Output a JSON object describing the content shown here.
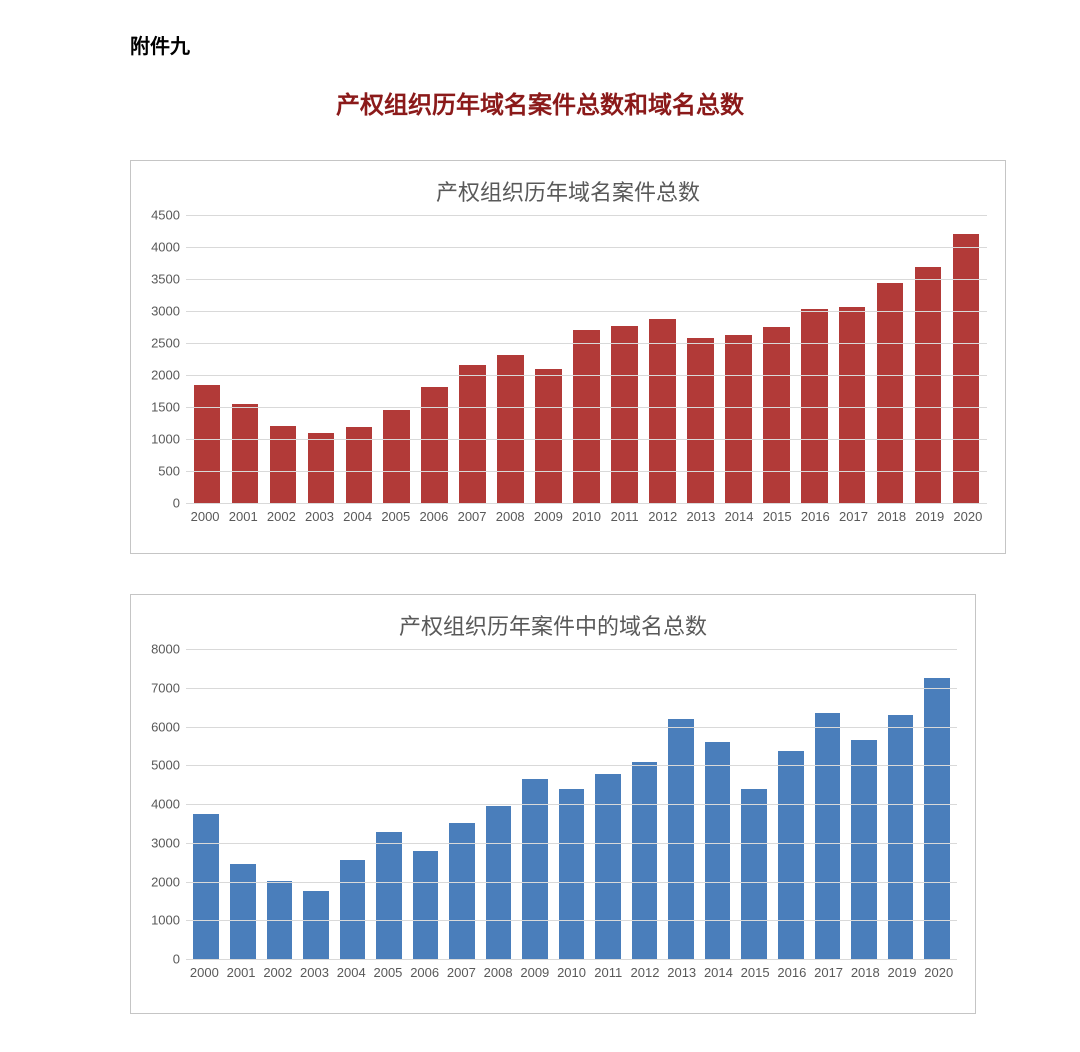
{
  "appendix_label": "附件九",
  "main_title": "产权组织历年域名案件总数和域名总数",
  "main_title_color": "#8b1a1a",
  "chart1": {
    "type": "bar",
    "title": "产权组织历年域名案件总数",
    "title_color": "#595959",
    "title_fontsize": 22,
    "categories": [
      "2000",
      "2001",
      "2002",
      "2003",
      "2004",
      "2005",
      "2006",
      "2007",
      "2008",
      "2009",
      "2010",
      "2011",
      "2012",
      "2013",
      "2014",
      "2015",
      "2016",
      "2017",
      "2018",
      "2019",
      "2020"
    ],
    "values": [
      1850,
      1550,
      1200,
      1100,
      1180,
      1450,
      1820,
      2150,
      2320,
      2100,
      2700,
      2760,
      2880,
      2580,
      2630,
      2750,
      3030,
      3070,
      3440,
      3690,
      4200
    ],
    "bar_color": "#b23a38",
    "ylim": [
      0,
      4500
    ],
    "ytick_step": 500,
    "grid_color": "#d9d9d9",
    "background_color": "#ffffff",
    "border_color": "#c5c5c5",
    "label_color": "#595959",
    "label_fontsize": 13,
    "bar_width": 0.7
  },
  "chart2": {
    "type": "bar",
    "title": "产权组织历年案件中的域名总数",
    "title_color": "#595959",
    "title_fontsize": 22,
    "categories": [
      "2000",
      "2001",
      "2002",
      "2003",
      "2004",
      "2005",
      "2006",
      "2007",
      "2008",
      "2009",
      "2010",
      "2011",
      "2012",
      "2013",
      "2014",
      "2015",
      "2016",
      "2017",
      "2018",
      "2019",
      "2020"
    ],
    "values": [
      3750,
      2450,
      2020,
      1750,
      2550,
      3280,
      2800,
      3520,
      3950,
      4650,
      4380,
      4780,
      5080,
      6200,
      5600,
      4380,
      5380,
      6350,
      5650,
      6300,
      7250
    ],
    "bar_color": "#4a7ebb",
    "ylim": [
      0,
      8000
    ],
    "ytick_step": 1000,
    "grid_color": "#d9d9d9",
    "background_color": "#ffffff",
    "border_color": "#c5c5c5",
    "label_color": "#595959",
    "label_fontsize": 13,
    "bar_width": 0.7
  }
}
